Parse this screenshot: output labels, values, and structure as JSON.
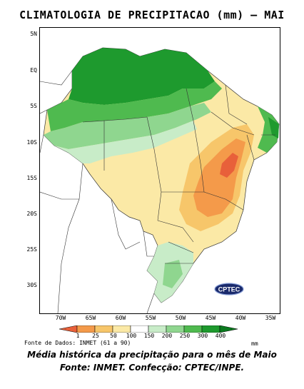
{
  "title": "CLIMATOLOGIA DE PRECIPITACAO (mm) – MAI",
  "lat_labels": [
    "5N",
    "EQ",
    "5S",
    "10S",
    "15S",
    "20S",
    "25S",
    "30S"
  ],
  "lon_labels": [
    "70W",
    "65W",
    "60W",
    "55W",
    "50W",
    "45W",
    "40W",
    "35W"
  ],
  "legend": {
    "levels": [
      "1",
      "25",
      "50",
      "100",
      "150",
      "200",
      "250",
      "300",
      "400"
    ],
    "unit": "mm",
    "colors": [
      "#e8603a",
      "#f49a4a",
      "#f7c66a",
      "#fbe9a6",
      "#ffffff",
      "#c8ecc8",
      "#8fd68f",
      "#4fba4f",
      "#1e9a2e",
      "#0a7a1e"
    ]
  },
  "source": "Fonte de Dados: INMET (61 a 90)",
  "logo_text": "CPTEC",
  "caption": {
    "line1": "Média histórica da precipitação para o mês de Maio",
    "line2": "Fonte: INMET. Confecção: CPTEC/INPE."
  }
}
